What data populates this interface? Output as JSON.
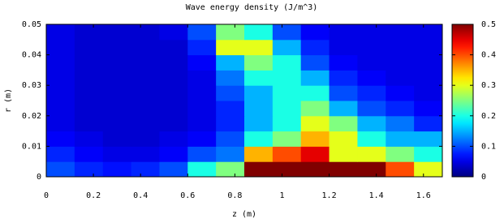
{
  "chart_data": {
    "type": "heatmap",
    "title": "Wave energy density (J/m^3)",
    "x_label": "z (m)",
    "y_label": "r (m)",
    "x_edges": [
      0,
      0.12,
      0.24,
      0.36,
      0.48,
      0.6,
      0.72,
      0.84,
      0.96,
      1.08,
      1.2,
      1.32,
      1.44,
      1.56,
      1.68
    ],
    "y_edges": [
      0,
      0.005,
      0.01,
      0.015,
      0.02,
      0.025,
      0.03,
      0.035,
      0.04,
      0.045,
      0.05
    ],
    "values": [
      [
        0.1,
        0.08,
        0.07,
        0.08,
        0.1,
        0.2,
        0.25,
        0.5,
        0.5,
        0.5,
        0.5,
        0.5,
        0.4,
        0.3
      ],
      [
        0.08,
        0.06,
        0.05,
        0.05,
        0.06,
        0.1,
        0.12,
        0.35,
        0.4,
        0.45,
        0.3,
        0.3,
        0.25,
        0.2
      ],
      [
        0.06,
        0.05,
        0.04,
        0.04,
        0.05,
        0.06,
        0.1,
        0.2,
        0.25,
        0.35,
        0.3,
        0.2,
        0.15,
        0.15
      ],
      [
        0.05,
        0.04,
        0.04,
        0.04,
        0.04,
        0.05,
        0.08,
        0.15,
        0.2,
        0.3,
        0.25,
        0.15,
        0.12,
        0.08
      ],
      [
        0.05,
        0.04,
        0.04,
        0.04,
        0.04,
        0.05,
        0.08,
        0.15,
        0.2,
        0.25,
        0.15,
        0.1,
        0.08,
        0.06
      ],
      [
        0.05,
        0.04,
        0.04,
        0.04,
        0.04,
        0.05,
        0.1,
        0.15,
        0.2,
        0.2,
        0.1,
        0.08,
        0.06,
        0.05
      ],
      [
        0.05,
        0.04,
        0.04,
        0.04,
        0.04,
        0.05,
        0.12,
        0.2,
        0.2,
        0.15,
        0.08,
        0.06,
        0.05,
        0.05
      ],
      [
        0.05,
        0.04,
        0.04,
        0.04,
        0.04,
        0.06,
        0.15,
        0.25,
        0.2,
        0.1,
        0.06,
        0.05,
        0.05,
        0.05
      ],
      [
        0.05,
        0.04,
        0.04,
        0.04,
        0.04,
        0.08,
        0.3,
        0.3,
        0.15,
        0.08,
        0.05,
        0.05,
        0.05,
        0.05
      ],
      [
        0.05,
        0.04,
        0.04,
        0.04,
        0.05,
        0.1,
        0.25,
        0.2,
        0.1,
        0.06,
        0.05,
        0.05,
        0.05,
        0.05
      ]
    ],
    "colormap": "jet",
    "xlim": [
      0,
      1.68
    ],
    "ylim": [
      0,
      0.05
    ],
    "clim": [
      0,
      0.5
    ],
    "xticks": [
      0,
      0.2,
      0.4,
      0.6,
      0.8,
      1,
      1.2,
      1.4,
      1.6
    ],
    "yticks": [
      0,
      0.01,
      0.02,
      0.03,
      0.04,
      0.05
    ],
    "cticks": [
      0,
      0.1,
      0.2,
      0.3,
      0.4,
      0.5
    ]
  }
}
